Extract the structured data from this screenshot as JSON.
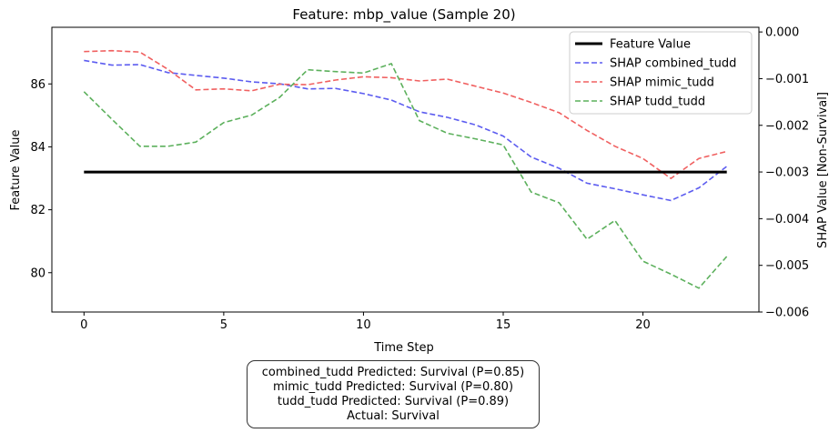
{
  "chart_data": {
    "type": "line",
    "title": "Feature: mbp_value (Sample 20)",
    "xlabel": "Time Step",
    "ylabel": "Feature Value",
    "y2label": "SHAP Value [Non-Survival]",
    "xlim": [
      -1.15,
      24.15
    ],
    "ylim": [
      78.75,
      87.8
    ],
    "y2lim": [
      -0.006,
      0.0001
    ],
    "x_ticks": [
      0,
      5,
      10,
      15,
      20
    ],
    "y_ticks": [
      80,
      82,
      84,
      86
    ],
    "y_tick_labels": [
      "80",
      "82",
      "84",
      "86"
    ],
    "y2_ticks": [
      0.0,
      -0.001,
      -0.002,
      -0.003,
      -0.004,
      -0.005,
      -0.006
    ],
    "y2_tick_labels": [
      "0.000",
      "−0.001",
      "−0.002",
      "−0.003",
      "−0.004",
      "−0.005",
      "−0.006"
    ],
    "grid": false,
    "legend_position": "top-right",
    "x": [
      0,
      1,
      2,
      3,
      4,
      5,
      6,
      7,
      8,
      9,
      10,
      11,
      12,
      13,
      14,
      15,
      16,
      17,
      18,
      19,
      20,
      21,
      22,
      23
    ],
    "feature_series": {
      "name": "Feature Value",
      "color": "#000000",
      "values": [
        83.2,
        83.2,
        83.2,
        83.2,
        83.2,
        83.2,
        83.2,
        83.2,
        83.2,
        83.2,
        83.2,
        83.2,
        83.2,
        83.2,
        83.2,
        83.2,
        83.2,
        83.2,
        83.2,
        83.2,
        83.2,
        83.2,
        83.2,
        83.2
      ]
    },
    "shap_series": [
      {
        "name": "SHAP combined_tudd",
        "color": "#5c5cf0",
        "values": [
          -0.00061,
          -0.00071,
          -0.0007,
          -0.00087,
          -0.00093,
          -0.00099,
          -0.00107,
          -0.00111,
          -0.00122,
          -0.00121,
          -0.00132,
          -0.00146,
          -0.00171,
          -0.00183,
          -0.00199,
          -0.00223,
          -0.00268,
          -0.00292,
          -0.00324,
          -0.00336,
          -0.00349,
          -0.00361,
          -0.00334,
          -0.00288
        ]
      },
      {
        "name": "SHAP mimic_tudd",
        "color": "#f06060",
        "values": [
          -0.00042,
          -0.0004,
          -0.00043,
          -0.0008,
          -0.00124,
          -0.00122,
          -0.00126,
          -0.00112,
          -0.00113,
          -0.00103,
          -0.00096,
          -0.00098,
          -0.00105,
          -0.00101,
          -0.00116,
          -0.00131,
          -0.00151,
          -0.00173,
          -0.00211,
          -0.00245,
          -0.00271,
          -0.00314,
          -0.00271,
          -0.00256
        ]
      },
      {
        "name": "SHAP tudd_tudd",
        "color": "#5cb05c",
        "values": [
          -0.00128,
          -0.00187,
          -0.00245,
          -0.00245,
          -0.00236,
          -0.00194,
          -0.00178,
          -0.0014,
          -0.00081,
          -0.00085,
          -0.00088,
          -0.00068,
          -0.0019,
          -0.00217,
          -0.00229,
          -0.00242,
          -0.00343,
          -0.00366,
          -0.00444,
          -0.00404,
          -0.00491,
          -0.00519,
          -0.00549,
          -0.00481
        ]
      }
    ]
  },
  "prediction_box": {
    "lines": [
      "combined_tudd Predicted: Survival (P=0.85)",
      "mimic_tudd Predicted: Survival (P=0.80)",
      "tudd_tudd Predicted: Survival (P=0.89)",
      "Actual: Survival"
    ]
  }
}
